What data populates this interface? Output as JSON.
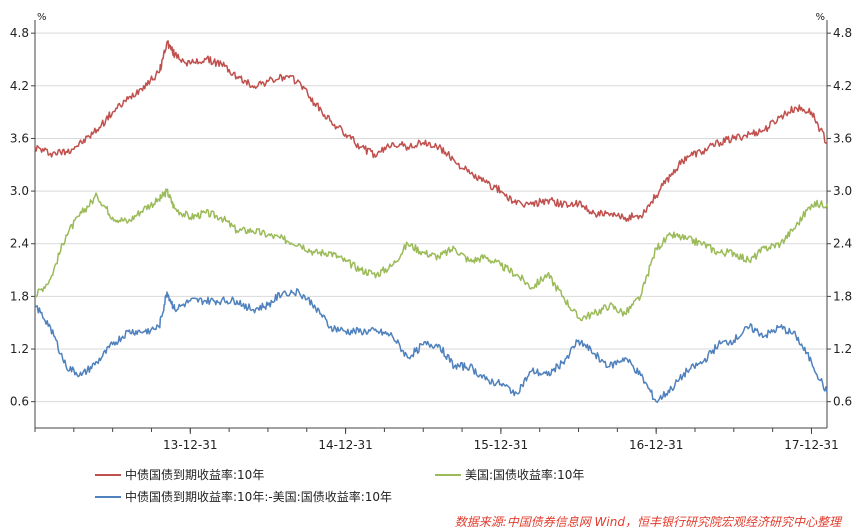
{
  "chart_data": {
    "type": "line",
    "y_unit_label": "%",
    "ylim": [
      0.3,
      4.95
    ],
    "y_ticks": [
      0.6,
      1.2,
      1.8,
      2.4,
      3.0,
      3.6,
      4.2,
      4.8
    ],
    "y_tick_labels": [
      "0.6",
      "1.2",
      "1.8",
      "2.4",
      "3.0",
      "3.6",
      "4.2",
      "4.8"
    ],
    "x_ticks": [
      "13-12-31",
      "14-12-31",
      "15-12-31",
      "16-12-31",
      "17-12-31"
    ],
    "x_tick_times": [
      0.5,
      1.5,
      2.5,
      3.5,
      4.5
    ],
    "xlim": [
      -0.5,
      4.6
    ],
    "grid": "horizontal",
    "legend_position": "bottom",
    "series": [
      {
        "name": "中债国债到期收益率:10年",
        "color": "#c0504d",
        "points": [
          [
            -0.5,
            3.5
          ],
          [
            -0.4,
            3.43
          ],
          [
            -0.3,
            3.45
          ],
          [
            -0.2,
            3.55
          ],
          [
            -0.1,
            3.7
          ],
          [
            0.0,
            3.9
          ],
          [
            0.1,
            4.05
          ],
          [
            0.2,
            4.2
          ],
          [
            0.3,
            4.35
          ],
          [
            0.35,
            4.7
          ],
          [
            0.4,
            4.55
          ],
          [
            0.5,
            4.45
          ],
          [
            0.6,
            4.5
          ],
          [
            0.7,
            4.45
          ],
          [
            0.8,
            4.3
          ],
          [
            0.9,
            4.2
          ],
          [
            1.0,
            4.25
          ],
          [
            1.1,
            4.3
          ],
          [
            1.2,
            4.25
          ],
          [
            1.3,
            4.0
          ],
          [
            1.4,
            3.8
          ],
          [
            1.5,
            3.65
          ],
          [
            1.6,
            3.5
          ],
          [
            1.7,
            3.4
          ],
          [
            1.8,
            3.55
          ],
          [
            1.9,
            3.5
          ],
          [
            2.0,
            3.55
          ],
          [
            2.1,
            3.5
          ],
          [
            2.2,
            3.35
          ],
          [
            2.3,
            3.2
          ],
          [
            2.4,
            3.1
          ],
          [
            2.5,
            3.0
          ],
          [
            2.6,
            2.85
          ],
          [
            2.7,
            2.85
          ],
          [
            2.8,
            2.9
          ],
          [
            2.9,
            2.85
          ],
          [
            3.0,
            2.85
          ],
          [
            3.1,
            2.75
          ],
          [
            3.2,
            2.72
          ],
          [
            3.3,
            2.7
          ],
          [
            3.4,
            2.72
          ],
          [
            3.5,
            2.95
          ],
          [
            3.6,
            3.2
          ],
          [
            3.7,
            3.4
          ],
          [
            3.8,
            3.45
          ],
          [
            3.9,
            3.55
          ],
          [
            4.0,
            3.6
          ],
          [
            4.1,
            3.65
          ],
          [
            4.2,
            3.7
          ],
          [
            4.3,
            3.85
          ],
          [
            4.4,
            3.95
          ],
          [
            4.5,
            3.9
          ],
          [
            4.6,
            3.55
          ]
        ]
      },
      {
        "name": "美国:国债收益率:10年",
        "color": "#9bbb59",
        "points": [
          [
            -0.5,
            1.8
          ],
          [
            -0.4,
            2.0
          ],
          [
            -0.3,
            2.5
          ],
          [
            -0.2,
            2.75
          ],
          [
            -0.1,
            2.95
          ],
          [
            0.0,
            2.7
          ],
          [
            0.1,
            2.65
          ],
          [
            0.2,
            2.8
          ],
          [
            0.3,
            2.9
          ],
          [
            0.35,
            3.0
          ],
          [
            0.4,
            2.8
          ],
          [
            0.5,
            2.7
          ],
          [
            0.6,
            2.75
          ],
          [
            0.7,
            2.7
          ],
          [
            0.8,
            2.55
          ],
          [
            0.9,
            2.55
          ],
          [
            1.0,
            2.5
          ],
          [
            1.1,
            2.45
          ],
          [
            1.2,
            2.4
          ],
          [
            1.3,
            2.3
          ],
          [
            1.4,
            2.3
          ],
          [
            1.5,
            2.2
          ],
          [
            1.6,
            2.1
          ],
          [
            1.7,
            2.05
          ],
          [
            1.8,
            2.15
          ],
          [
            1.9,
            2.4
          ],
          [
            2.0,
            2.3
          ],
          [
            2.1,
            2.25
          ],
          [
            2.2,
            2.35
          ],
          [
            2.3,
            2.2
          ],
          [
            2.4,
            2.25
          ],
          [
            2.5,
            2.15
          ],
          [
            2.6,
            2.05
          ],
          [
            2.7,
            1.9
          ],
          [
            2.8,
            2.05
          ],
          [
            2.9,
            1.8
          ],
          [
            3.0,
            1.55
          ],
          [
            3.1,
            1.6
          ],
          [
            3.2,
            1.7
          ],
          [
            3.3,
            1.6
          ],
          [
            3.4,
            1.8
          ],
          [
            3.5,
            2.35
          ],
          [
            3.6,
            2.5
          ],
          [
            3.7,
            2.45
          ],
          [
            3.8,
            2.4
          ],
          [
            3.9,
            2.3
          ],
          [
            4.0,
            2.3
          ],
          [
            4.1,
            2.2
          ],
          [
            4.2,
            2.35
          ],
          [
            4.3,
            2.4
          ],
          [
            4.4,
            2.6
          ],
          [
            4.5,
            2.85
          ],
          [
            4.6,
            2.85
          ]
        ]
      },
      {
        "name": "中债国债到期收益率:10年:-美国:国债收益率:10年",
        "color": "#4f81bd",
        "points": [
          [
            -0.5,
            1.7
          ],
          [
            -0.4,
            1.45
          ],
          [
            -0.3,
            1.0
          ],
          [
            -0.2,
            0.9
          ],
          [
            -0.1,
            1.05
          ],
          [
            0.0,
            1.25
          ],
          [
            0.1,
            1.4
          ],
          [
            0.2,
            1.4
          ],
          [
            0.3,
            1.45
          ],
          [
            0.35,
            1.85
          ],
          [
            0.4,
            1.65
          ],
          [
            0.5,
            1.75
          ],
          [
            0.6,
            1.75
          ],
          [
            0.7,
            1.75
          ],
          [
            0.8,
            1.75
          ],
          [
            0.9,
            1.65
          ],
          [
            1.0,
            1.7
          ],
          [
            1.1,
            1.85
          ],
          [
            1.2,
            1.85
          ],
          [
            1.3,
            1.7
          ],
          [
            1.4,
            1.45
          ],
          [
            1.5,
            1.4
          ],
          [
            1.6,
            1.4
          ],
          [
            1.7,
            1.4
          ],
          [
            1.8,
            1.35
          ],
          [
            1.9,
            1.1
          ],
          [
            2.0,
            1.25
          ],
          [
            2.1,
            1.25
          ],
          [
            2.2,
            1.0
          ],
          [
            2.3,
            1.0
          ],
          [
            2.4,
            0.85
          ],
          [
            2.5,
            0.8
          ],
          [
            2.6,
            0.7
          ],
          [
            2.7,
            0.95
          ],
          [
            2.8,
            0.9
          ],
          [
            2.9,
            1.05
          ],
          [
            3.0,
            1.3
          ],
          [
            3.1,
            1.15
          ],
          [
            3.2,
            1.0
          ],
          [
            3.3,
            1.1
          ],
          [
            3.4,
            0.9
          ],
          [
            3.5,
            0.6
          ],
          [
            3.6,
            0.75
          ],
          [
            3.7,
            0.95
          ],
          [
            3.8,
            1.05
          ],
          [
            3.9,
            1.25
          ],
          [
            4.0,
            1.3
          ],
          [
            4.1,
            1.45
          ],
          [
            4.2,
            1.35
          ],
          [
            4.3,
            1.45
          ],
          [
            4.4,
            1.35
          ],
          [
            4.5,
            1.05
          ],
          [
            4.6,
            0.7
          ]
        ]
      }
    ]
  },
  "source_note": "数据来源:中国债券信息网 Wind，恒丰银行研究院宏观经济研究中心整理"
}
